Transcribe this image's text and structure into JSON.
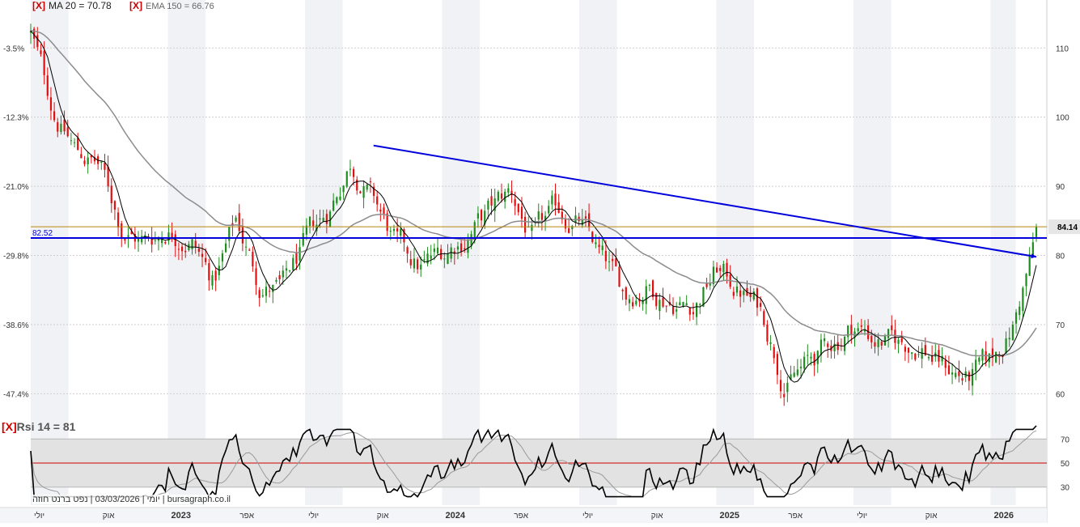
{
  "legend": {
    "ma_close": "[X]",
    "ma_label": "MA 20 = 70.78",
    "ema_close": "[X]",
    "ema_label": "EMA 150 = 66.76",
    "rsi_close": "[X]",
    "rsi_label": "Rsi 14 = 81"
  },
  "watermark": "יומי | 03/03/2026 | נפט ברנט חוזה | bursagraph.co.il",
  "colors": {
    "up_candle": "#1e8c1e",
    "down_candle": "#e01010",
    "ma20": "#000000",
    "ema150": "#8c8c8c",
    "trendline": "#0000dd",
    "support_line": "#0000dd",
    "last_price_line": "#b8860b",
    "rsi_line": "#000000",
    "rsi_signal": "#9a9a9a",
    "rsi_mid": "#d00000",
    "rsi_band": "#e2e2e2",
    "column_shade": "#f1f2f5"
  },
  "chart_data": [
    {
      "type": "candlestick",
      "title": "",
      "x_ticks": [
        "יולי",
        "אוק",
        "2023",
        "אפר",
        "יולי",
        "אוק",
        "2024",
        "אפר",
        "יולי",
        "אוק",
        "2025",
        "אפר",
        "יולי",
        "אוק",
        "2026"
      ],
      "y_ticks_right": [
        110,
        100,
        90,
        80,
        70,
        60
      ],
      "y_ticks_left": [
        "-3.5%",
        "-12.3%",
        "-21.0%",
        "-29.8%",
        "-38.6%",
        "-47.4%"
      ],
      "ylim": [
        57,
        116
      ],
      "x_range": [
        "2022-07",
        "2026-03"
      ],
      "price_path": {
        "x": [
          "2022-07",
          "2022-08",
          "2022-09",
          "2022-10",
          "2022-11",
          "2022-12",
          "2023-01",
          "2023-02",
          "2023-03",
          "2023-04",
          "2023-05",
          "2023-06",
          "2023-07",
          "2023-08",
          "2023-09",
          "2023-10",
          "2023-11",
          "2023-12",
          "2024-01",
          "2024-02",
          "2024-03",
          "2024-04",
          "2024-05",
          "2024-06",
          "2024-07",
          "2024-08",
          "2024-09",
          "2024-10",
          "2024-11",
          "2024-12",
          "2025-01",
          "2025-02",
          "2025-03",
          "2025-04",
          "2025-05",
          "2025-06",
          "2025-07",
          "2025-08",
          "2025-09",
          "2025-10",
          "2025-11",
          "2025-12",
          "2026-01",
          "2026-02",
          "2026-03"
        ],
        "close": [
          112,
          101,
          95,
          93,
          84,
          82,
          84,
          83,
          76,
          85,
          76,
          75,
          81,
          86,
          94,
          88,
          81,
          78,
          80,
          83,
          86,
          89,
          82,
          86,
          85,
          79,
          74,
          76,
          74,
          73,
          78,
          75,
          72,
          62,
          64,
          67,
          70,
          68,
          67,
          67,
          64,
          62,
          64,
          70,
          83
        ]
      },
      "ma20_current": 70.78,
      "ema150_current": 66.76,
      "last_price": 84.14,
      "support_level": 82.52,
      "trendline": {
        "from": {
          "x": "2023-10",
          "y": 95.9
        },
        "to": {
          "x": "2026-03",
          "y": 79.8
        }
      }
    },
    {
      "type": "line",
      "title": "Rsi 14",
      "y_ticks": [
        70,
        50,
        30
      ],
      "ylim": [
        15,
        85
      ],
      "band": [
        30,
        70
      ],
      "midline": 50,
      "current": 81
    }
  ]
}
